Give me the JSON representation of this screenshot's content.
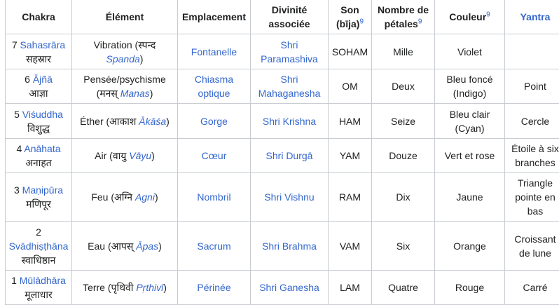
{
  "headers": [
    {
      "label": "Chakra"
    },
    {
      "label": "Élément"
    },
    {
      "label": "Emplacement"
    },
    {
      "label": "Divinité associée"
    },
    {
      "label": "Son (bīja)",
      "sup": "9"
    },
    {
      "label": "Nombre de pétales",
      "sup": "9"
    },
    {
      "label": "Couleur",
      "sup": "9"
    },
    {
      "label": "Yantra",
      "link": true
    }
  ],
  "rows": [
    [
      [
        {
          "t": "7 "
        },
        {
          "t": "Sahasrāra",
          "link": true
        },
        {
          "br": true
        },
        {
          "t": "सहस्रार"
        }
      ],
      [
        {
          "t": "Vibration (स्पन्द "
        },
        {
          "t": "Spanda",
          "link": true,
          "italic": true
        },
        {
          "t": ")"
        }
      ],
      [
        {
          "t": "Fontanelle",
          "link": true
        }
      ],
      [
        {
          "t": "Shri Paramashiva",
          "link": true
        }
      ],
      [
        {
          "t": "SOHAM"
        }
      ],
      [
        {
          "t": "Mille"
        }
      ],
      [
        {
          "t": "Violet"
        }
      ],
      []
    ],
    [
      [
        {
          "t": "6 "
        },
        {
          "t": "Ājñā",
          "link": true
        },
        {
          "br": true
        },
        {
          "t": "आज्ञा"
        }
      ],
      [
        {
          "t": "Pensée/psychisme"
        },
        {
          "br": true
        },
        {
          "t": "(मनस् "
        },
        {
          "t": "Manas",
          "link": true,
          "italic": true
        },
        {
          "t": ")"
        }
      ],
      [
        {
          "t": "Chiasma optique",
          "link": true
        }
      ],
      [
        {
          "t": "Shri Mahaganesha",
          "link": true
        }
      ],
      [
        {
          "t": "OM"
        }
      ],
      [
        {
          "t": "Deux"
        }
      ],
      [
        {
          "t": "Bleu foncé (Indigo)"
        }
      ],
      [
        {
          "t": "Point"
        }
      ]
    ],
    [
      [
        {
          "t": "5 "
        },
        {
          "t": "Viśuddha",
          "link": true
        },
        {
          "br": true
        },
        {
          "t": "विशुद्ध"
        }
      ],
      [
        {
          "t": "Éther (आकाश "
        },
        {
          "t": "Ākāśa",
          "link": true,
          "italic": true
        },
        {
          "t": ")"
        }
      ],
      [
        {
          "t": "Gorge",
          "link": true
        }
      ],
      [
        {
          "t": "Shri Krishna",
          "link": true
        }
      ],
      [
        {
          "t": "HAM"
        }
      ],
      [
        {
          "t": "Seize"
        }
      ],
      [
        {
          "t": "Bleu clair (Cyan)"
        }
      ],
      [
        {
          "t": "Cercle"
        }
      ]
    ],
    [
      [
        {
          "t": "4 "
        },
        {
          "t": "Anāhata",
          "link": true
        },
        {
          "br": true
        },
        {
          "t": "अनाहत"
        }
      ],
      [
        {
          "t": "Air (वायु "
        },
        {
          "t": "Vāyu",
          "link": true,
          "italic": true
        },
        {
          "t": ")"
        }
      ],
      [
        {
          "t": "Cœur",
          "link": true
        }
      ],
      [
        {
          "t": "Shri Durgā",
          "link": true
        }
      ],
      [
        {
          "t": "YAM"
        }
      ],
      [
        {
          "t": "Douze"
        }
      ],
      [
        {
          "t": "Vert et rose"
        }
      ],
      [
        {
          "t": "Étoile à six branches"
        }
      ]
    ],
    [
      [
        {
          "t": "3 "
        },
        {
          "t": "Maṇipūra",
          "link": true
        },
        {
          "br": true
        },
        {
          "t": "मणिपूर"
        }
      ],
      [
        {
          "t": "Feu (अग्नि "
        },
        {
          "t": "Agni",
          "link": true,
          "italic": true
        },
        {
          "t": ")"
        }
      ],
      [
        {
          "t": "Nombril",
          "link": true
        }
      ],
      [
        {
          "t": "Shri Vishnu",
          "link": true
        }
      ],
      [
        {
          "t": "RAM"
        }
      ],
      [
        {
          "t": "Dix"
        }
      ],
      [
        {
          "t": "Jaune"
        }
      ],
      [
        {
          "t": "Triangle pointe en bas"
        }
      ]
    ],
    [
      [
        {
          "t": "2"
        },
        {
          "br": true
        },
        {
          "t": "Svādhiṣṭhāna",
          "link": true
        },
        {
          "br": true
        },
        {
          "t": "स्वाधिष्ठान"
        }
      ],
      [
        {
          "t": "Eau (आपस् "
        },
        {
          "t": "Āpas",
          "link": true,
          "italic": true
        },
        {
          "t": ")"
        }
      ],
      [
        {
          "t": "Sacrum",
          "link": true
        }
      ],
      [
        {
          "t": "Shri Brahma",
          "link": true
        }
      ],
      [
        {
          "t": "VAM"
        }
      ],
      [
        {
          "t": "Six"
        }
      ],
      [
        {
          "t": "Orange"
        }
      ],
      [
        {
          "t": "Croissant de lune"
        }
      ]
    ],
    [
      [
        {
          "t": "1 "
        },
        {
          "t": "Mūlādhāra",
          "link": true
        },
        {
          "br": true
        },
        {
          "t": "मूलाधार"
        }
      ],
      [
        {
          "t": "Terre (पृथिवी "
        },
        {
          "t": "Pṛthivī",
          "link": true,
          "italic": true
        },
        {
          "t": ")"
        }
      ],
      [
        {
          "t": "Périnée",
          "link": true
        }
      ],
      [
        {
          "t": "Shri Ganesha",
          "link": true
        }
      ],
      [
        {
          "t": "LAM"
        }
      ],
      [
        {
          "t": "Quatre"
        }
      ],
      [
        {
          "t": "Rouge"
        }
      ],
      [
        {
          "t": "Carré"
        }
      ]
    ]
  ],
  "colors": {
    "link": "#3366cc",
    "border": "#c8ccd1",
    "text": "#202122"
  }
}
